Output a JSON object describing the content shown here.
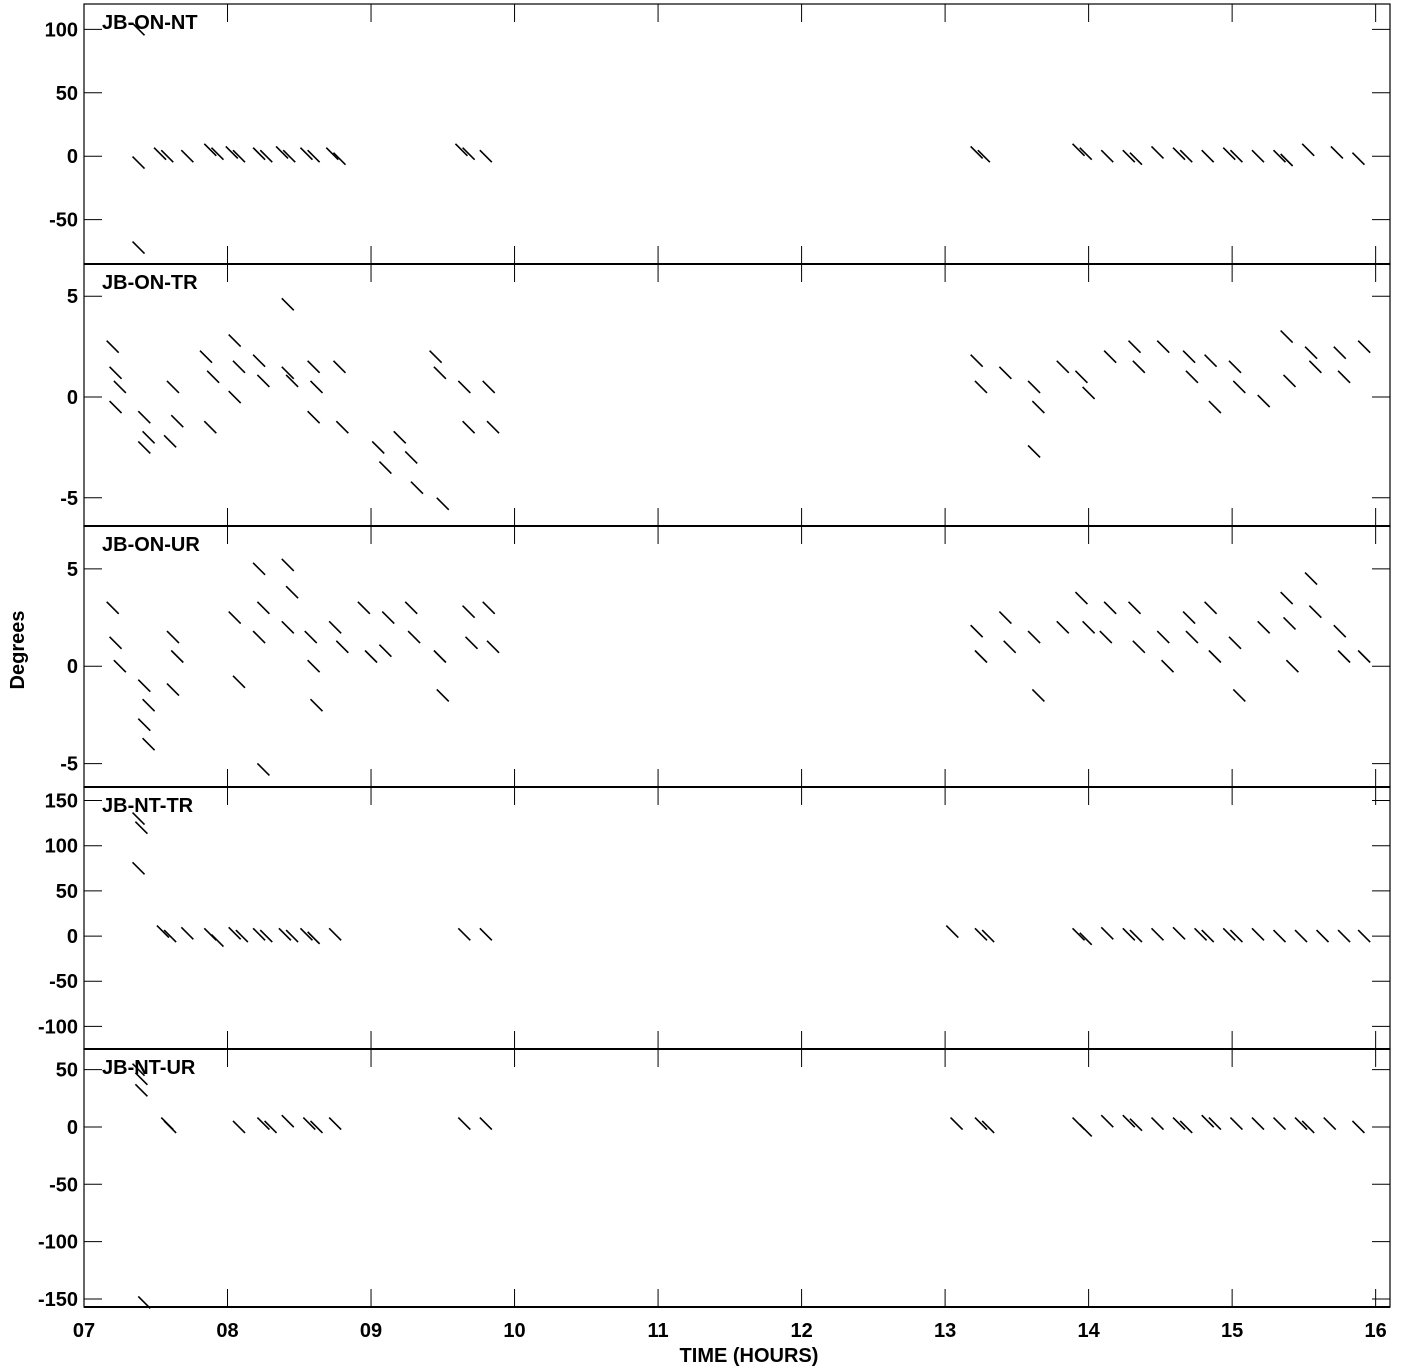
{
  "chart_data": {
    "type": "scatter",
    "xlabel": "TIME (HOURS)",
    "ylabel": "Degrees",
    "xlim": [
      7.0,
      16.1
    ],
    "x_ticks": [
      7,
      8,
      9,
      10,
      11,
      12,
      13,
      14,
      15,
      16
    ],
    "x_tick_labels": [
      "07",
      "08",
      "09",
      "10",
      "11",
      "12",
      "13",
      "14",
      "15",
      "16"
    ],
    "marker": "short diagonal dash",
    "grid": false,
    "panels": [
      {
        "label": "JB-ON-NT",
        "ylim": [
          -85,
          120
        ],
        "y_ticks": [
          100,
          50,
          0,
          -50
        ],
        "y_tick_labels": [
          "100",
          "50",
          "0",
          "-50"
        ],
        "series": [
          {
            "x": [
              7.38,
              7.53,
              7.58,
              7.72,
              7.88,
              7.93,
              8.03,
              8.08,
              8.22,
              8.27,
              8.38,
              8.43,
              8.55,
              8.6,
              8.73,
              8.78,
              9.63,
              9.68,
              9.8,
              13.22,
              13.27,
              13.93,
              13.98,
              14.13,
              14.28,
              14.33,
              14.48,
              14.63,
              14.68,
              14.83,
              14.98,
              15.03,
              15.18,
              15.33,
              15.38,
              15.53,
              15.73,
              15.88,
              7.38,
              7.38
            ],
            "y": [
              -5,
              2,
              0,
              0,
              5,
              2,
              3,
              0,
              2,
              0,
              3,
              0,
              2,
              0,
              2,
              -2,
              5,
              2,
              0,
              3,
              0,
              5,
              2,
              0,
              0,
              -2,
              3,
              2,
              0,
              0,
              2,
              0,
              0,
              0,
              -3,
              5,
              3,
              -2,
              100,
              -72
            ]
          }
        ]
      },
      {
        "label": "JB-ON-TR",
        "ylim": [
          -6.4,
          6.6
        ],
        "y_ticks": [
          5,
          0,
          -5
        ],
        "y_tick_labels": [
          "5",
          "0",
          "-5"
        ],
        "series": [
          {
            "x": [
              7.2,
              7.22,
              7.25,
              7.22,
              7.42,
              7.45,
              7.42,
              7.62,
              7.65,
              7.6,
              7.85,
              7.9,
              7.88,
              8.05,
              8.08,
              8.05,
              8.22,
              8.25,
              8.42,
              8.45,
              8.6,
              8.62,
              8.6,
              8.78,
              8.8,
              9.05,
              9.1,
              9.2,
              9.28,
              9.32,
              9.45,
              9.48,
              9.65,
              9.68,
              9.82,
              9.85,
              13.22,
              13.25,
              13.42,
              13.62,
              13.65,
              13.82,
              13.95,
              14.0,
              14.15,
              14.32,
              14.35,
              14.52,
              14.7,
              14.72,
              14.85,
              14.88,
              15.02,
              15.05,
              15.22,
              15.38,
              15.4,
              15.55,
              15.58,
              15.75,
              15.78,
              15.92,
              8.42,
              9.5,
              13.62
            ],
            "y": [
              2.5,
              1.2,
              0.5,
              -0.5,
              -1,
              -2,
              -2.5,
              0.5,
              -1.2,
              -2.2,
              2,
              1,
              -1.5,
              2.8,
              1.5,
              0,
              1.8,
              0.8,
              1.2,
              0.8,
              1.5,
              0.5,
              -1,
              1.5,
              -1.5,
              -2.5,
              -3.5,
              -2,
              -3,
              -4.5,
              2,
              1.2,
              0.5,
              -1.5,
              0.5,
              -1.5,
              1.8,
              0.5,
              1.2,
              0.5,
              -0.5,
              1.5,
              1,
              0.2,
              2,
              2.5,
              1.5,
              2.5,
              2,
              1,
              1.8,
              -0.5,
              1.5,
              0.5,
              -0.2,
              3,
              0.8,
              2.2,
              1.5,
              2.2,
              1,
              2.5,
              4.6,
              -5.3,
              -2.7
            ]
          }
        ]
      },
      {
        "label": "JB-ON-UR",
        "ylim": [
          -6.2,
          7.2
        ],
        "y_ticks": [
          5,
          0,
          -5
        ],
        "y_tick_labels": [
          "5",
          "0",
          "-5"
        ],
        "series": [
          {
            "x": [
              7.2,
              7.22,
              7.25,
              7.42,
              7.45,
              7.42,
              7.45,
              7.62,
              7.65,
              7.62,
              8.05,
              8.08,
              8.22,
              8.25,
              8.22,
              8.42,
              8.45,
              8.42,
              8.58,
              8.6,
              8.62,
              8.75,
              8.8,
              8.95,
              9.0,
              9.12,
              9.1,
              9.28,
              9.3,
              9.48,
              9.5,
              9.68,
              9.7,
              9.82,
              9.85,
              13.22,
              13.25,
              13.42,
              13.45,
              13.62,
              13.65,
              13.82,
              13.95,
              14.0,
              14.15,
              14.12,
              14.32,
              14.35,
              14.52,
              14.55,
              14.7,
              14.72,
              14.85,
              14.88,
              15.02,
              15.05,
              15.22,
              15.38,
              15.4,
              15.55,
              15.58,
              15.75,
              15.78,
              15.92,
              8.25,
              15.42
            ],
            "y": [
              3,
              1.2,
              0,
              -1,
              -2,
              -3,
              -4,
              1.5,
              0.5,
              -1.2,
              2.5,
              -0.8,
              5,
              3,
              1.5,
              5.2,
              3.8,
              2,
              1.5,
              0,
              -2,
              2,
              1,
              3,
              0.5,
              2.5,
              0.8,
              3,
              1.5,
              0.5,
              -1.5,
              2.8,
              1.2,
              3,
              1,
              1.8,
              0.5,
              2.5,
              1,
              1.5,
              -1.5,
              2,
              3.5,
              2,
              3,
              1.5,
              3,
              1,
              1.5,
              0,
              2.5,
              1.5,
              3,
              0.5,
              1.2,
              -1.5,
              2,
              3.5,
              2.2,
              4.5,
              2.8,
              1.8,
              0.5,
              0.5,
              -5.3,
              0
            ]
          }
        ]
      },
      {
        "label": "JB-NT-TR",
        "ylim": [
          -125,
          165
        ],
        "y_ticks": [
          150,
          100,
          50,
          0,
          -50,
          -100
        ],
        "y_tick_labels": [
          "150",
          "100",
          "50",
          "0",
          "-50",
          "-100"
        ],
        "series": [
          {
            "x": [
              7.38,
              7.4,
              7.38,
              7.55,
              7.6,
              7.72,
              7.88,
              7.93,
              8.05,
              8.1,
              8.22,
              8.27,
              8.4,
              8.45,
              8.55,
              8.6,
              8.75,
              9.65,
              9.8,
              13.05,
              13.25,
              13.3,
              13.93,
              13.98,
              14.13,
              14.28,
              14.33,
              14.48,
              14.63,
              14.78,
              14.83,
              14.98,
              15.03,
              15.18,
              15.33,
              15.48,
              15.63,
              15.78,
              15.92
            ],
            "y": [
              130,
              120,
              75,
              5,
              0,
              3,
              2,
              -5,
              3,
              0,
              2,
              0,
              2,
              0,
              2,
              -2,
              2,
              2,
              2,
              5,
              2,
              0,
              2,
              -3,
              3,
              2,
              0,
              2,
              3,
              2,
              0,
              2,
              0,
              2,
              0,
              0,
              0,
              0,
              0
            ]
          }
        ]
      },
      {
        "label": "JB-NT-UR",
        "ylim": [
          -157,
          68
        ],
        "y_ticks": [
          50,
          0,
          -50,
          -100,
          -150
        ],
        "y_tick_labels": [
          "50",
          "0",
          "-50",
          "-100",
          "-150"
        ],
        "series": [
          {
            "x": [
              7.38,
              7.4,
              7.4,
              7.58,
              7.6,
              8.08,
              8.25,
              8.3,
              8.42,
              8.57,
              8.62,
              8.75,
              9.65,
              9.8,
              13.08,
              13.25,
              13.3,
              13.93,
              13.98,
              14.13,
              14.28,
              14.33,
              14.48,
              14.63,
              14.68,
              14.83,
              14.88,
              15.03,
              15.18,
              15.33,
              15.48,
              15.53,
              15.68,
              15.88,
              7.42
            ],
            "y": [
              50,
              42,
              32,
              3,
              0,
              0,
              3,
              0,
              5,
              3,
              0,
              3,
              3,
              3,
              3,
              3,
              0,
              3,
              -3,
              5,
              5,
              2,
              3,
              3,
              0,
              5,
              3,
              3,
              3,
              3,
              3,
              0,
              3,
              0,
              -153
            ]
          }
        ]
      }
    ]
  }
}
